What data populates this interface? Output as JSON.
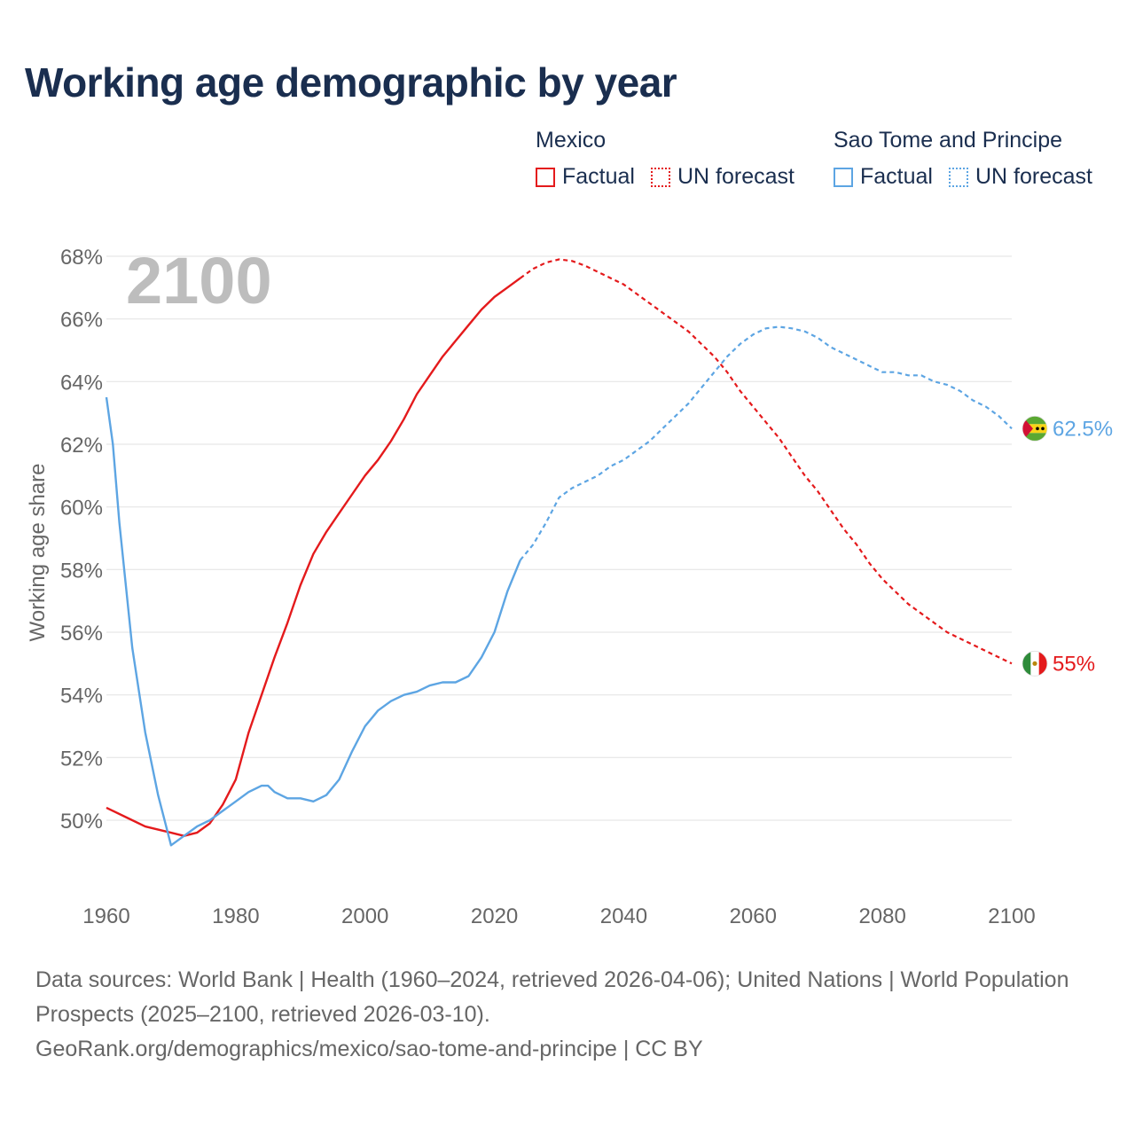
{
  "title": "Working age demographic by year",
  "legend": {
    "mexico": {
      "name": "Mexico",
      "factual": "Factual",
      "forecast": "UN forecast"
    },
    "stp": {
      "name": "Sao Tome and Principe",
      "factual": "Factual",
      "forecast": "UN forecast"
    }
  },
  "colors": {
    "mexico": "#e41a1c",
    "stp": "#5da5e3",
    "year_watermark": "#bdbdbd",
    "grid": "#e6e6e6",
    "axis_text": "#666666"
  },
  "footer": {
    "line1": "Data sources: World Bank | Health (1960–2024, retrieved 2026-04-06); United Nations | World Population Prospects (2025–2100, retrieved 2026-03-10).",
    "line2": "GeoRank.org/demographics/mexico/sao-tome-and-principe | CC BY"
  },
  "chart_data": {
    "type": "line",
    "title": "Working age demographic by year",
    "xlabel": "",
    "ylabel": "Working age share",
    "xlim": [
      1960,
      2100
    ],
    "ylim": [
      47.5,
      68.5
    ],
    "x_ticks": [
      "1960",
      "1980",
      "2000",
      "2020",
      "2040",
      "2060",
      "2080",
      "2100"
    ],
    "x_tick_values": [
      1960,
      1980,
      2000,
      2020,
      2040,
      2060,
      2080,
      2100
    ],
    "y_ticks": [
      "50%",
      "52%",
      "54%",
      "56%",
      "58%",
      "60%",
      "62%",
      "64%",
      "66%",
      "68%"
    ],
    "y_tick_values": [
      50,
      52,
      54,
      56,
      58,
      60,
      62,
      64,
      66,
      68
    ],
    "current_year": "2100",
    "factual_end_year": 2024,
    "series": [
      {
        "name": "Mexico",
        "color": "#e41a1c",
        "end_label": "55%",
        "flag": "mexico-flag-icon",
        "x": [
          1960,
          1963,
          1966,
          1968,
          1970,
          1972,
          1974,
          1976,
          1978,
          1980,
          1982,
          1984,
          1986,
          1988,
          1990,
          1992,
          1994,
          1996,
          1998,
          2000,
          2002,
          2004,
          2006,
          2008,
          2010,
          2012,
          2014,
          2016,
          2018,
          2020,
          2022,
          2024,
          2026,
          2028,
          2030,
          2032,
          2034,
          2036,
          2038,
          2040,
          2042,
          2044,
          2046,
          2048,
          2050,
          2052,
          2054,
          2056,
          2058,
          2060,
          2062,
          2064,
          2066,
          2068,
          2070,
          2072,
          2074,
          2076,
          2078,
          2080,
          2082,
          2084,
          2086,
          2088,
          2090,
          2092,
          2094,
          2096,
          2098,
          2100
        ],
        "y": [
          50.4,
          50.1,
          49.8,
          49.7,
          49.6,
          49.5,
          49.6,
          49.9,
          50.5,
          51.3,
          52.8,
          54.0,
          55.2,
          56.3,
          57.5,
          58.5,
          59.2,
          59.8,
          60.4,
          61.0,
          61.5,
          62.1,
          62.8,
          63.6,
          64.2,
          64.8,
          65.3,
          65.8,
          66.3,
          66.7,
          67.0,
          67.3,
          67.6,
          67.8,
          67.9,
          67.85,
          67.7,
          67.5,
          67.3,
          67.1,
          66.8,
          66.5,
          66.2,
          65.9,
          65.6,
          65.2,
          64.8,
          64.3,
          63.7,
          63.2,
          62.7,
          62.2,
          61.6,
          61.0,
          60.5,
          59.9,
          59.3,
          58.8,
          58.2,
          57.7,
          57.3,
          56.9,
          56.6,
          56.3,
          56.0,
          55.8,
          55.6,
          55.4,
          55.2,
          55.0
        ]
      },
      {
        "name": "Sao Tome and Principe",
        "color": "#5da5e3",
        "end_label": "62.5%",
        "flag": "sao-tome-flag-icon",
        "x": [
          1960,
          1961,
          1962,
          1964,
          1966,
          1968,
          1970,
          1972,
          1974,
          1976,
          1978,
          1980,
          1982,
          1984,
          1985,
          1986,
          1988,
          1990,
          1992,
          1994,
          1996,
          1998,
          2000,
          2002,
          2004,
          2006,
          2008,
          2010,
          2012,
          2014,
          2016,
          2018,
          2020,
          2022,
          2024,
          2026,
          2028,
          2030,
          2032,
          2034,
          2036,
          2038,
          2040,
          2042,
          2044,
          2046,
          2048,
          2050,
          2052,
          2054,
          2056,
          2058,
          2060,
          2062,
          2064,
          2066,
          2068,
          2070,
          2072,
          2074,
          2076,
          2078,
          2080,
          2082,
          2084,
          2086,
          2088,
          2090,
          2092,
          2094,
          2096,
          2098,
          2100
        ],
        "y": [
          63.5,
          62.0,
          59.5,
          55.5,
          52.8,
          50.8,
          49.2,
          49.5,
          49.8,
          50.0,
          50.3,
          50.6,
          50.9,
          51.1,
          51.1,
          50.9,
          50.7,
          50.7,
          50.6,
          50.8,
          51.3,
          52.2,
          53.0,
          53.5,
          53.8,
          54.0,
          54.1,
          54.3,
          54.4,
          54.4,
          54.6,
          55.2,
          56.0,
          57.3,
          58.3,
          58.8,
          59.5,
          60.3,
          60.6,
          60.8,
          61.0,
          61.3,
          61.5,
          61.8,
          62.1,
          62.5,
          62.9,
          63.3,
          63.8,
          64.3,
          64.8,
          65.2,
          65.5,
          65.7,
          65.75,
          65.7,
          65.6,
          65.4,
          65.1,
          64.9,
          64.7,
          64.5,
          64.3,
          64.3,
          64.2,
          64.2,
          64.0,
          63.9,
          63.7,
          63.4,
          63.2,
          62.9,
          62.5
        ]
      }
    ]
  }
}
